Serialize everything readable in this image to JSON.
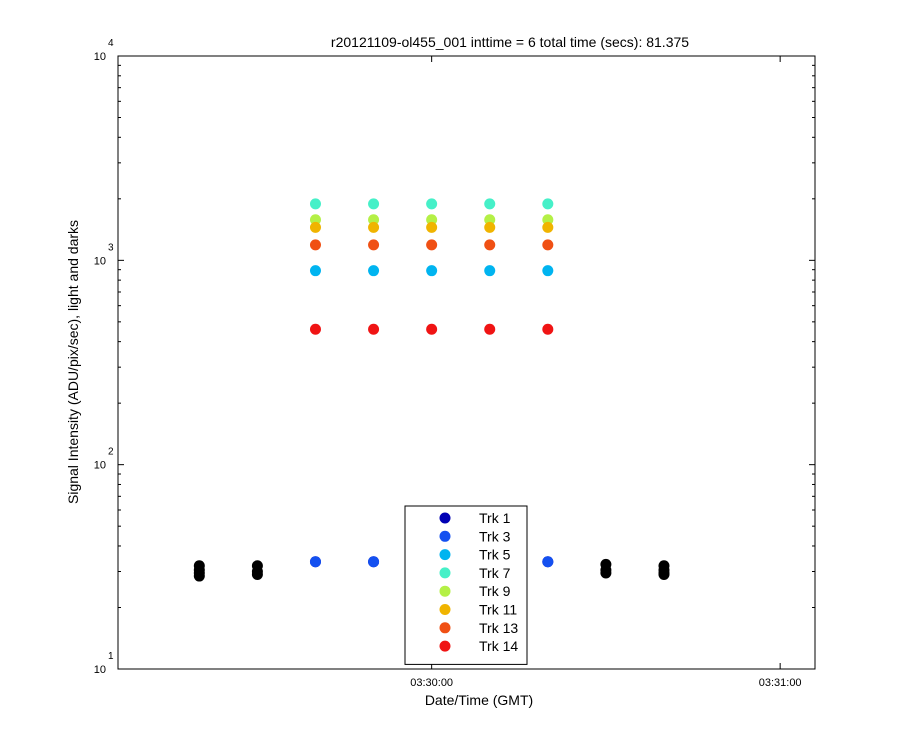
{
  "chart_data": {
    "type": "scatter",
    "title": "r20121109-ol455_001 inttime = 6 total time (secs): 81.375",
    "xlabel": "Date/Time (GMT)",
    "ylabel": "Signal Intensity (ADU/pix/sec), light and darks",
    "yscale": "log",
    "ylim": [
      10,
      10000
    ],
    "xlim": [
      "03:29:06",
      "03:31:06"
    ],
    "x_ticks": [
      "03:30:00",
      "03:31:00"
    ],
    "y_ticks": [
      {
        "value": 10,
        "base": "10",
        "exp": "1"
      },
      {
        "value": 100,
        "base": "10",
        "exp": "2"
      },
      {
        "value": 1000,
        "base": "10",
        "exp": "3"
      },
      {
        "value": 10000,
        "base": "10",
        "exp": "4"
      }
    ],
    "grid": false,
    "legend_position": "bottom-center",
    "series": [
      {
        "name": "Trk 1",
        "color": "#0000b4",
        "x": [
          "03:29:40",
          "03:29:50",
          "03:30:00",
          "03:30:10",
          "03:30:20"
        ],
        "y": [
          33.5,
          33.5,
          33.5,
          33.5,
          33.5
        ]
      },
      {
        "name": "Trk 3",
        "color": "#1450f0",
        "x": [
          "03:29:40",
          "03:29:50",
          "03:30:00",
          "03:30:10",
          "03:30:20"
        ],
        "y": [
          33.5,
          33.5,
          33.5,
          33.5,
          33.5
        ]
      },
      {
        "name": "Trk 5",
        "color": "#00b4f0",
        "x": [
          "03:29:40",
          "03:29:50",
          "03:30:00",
          "03:30:10",
          "03:30:20"
        ],
        "y": [
          890,
          890,
          890,
          890,
          890
        ]
      },
      {
        "name": "Trk 7",
        "color": "#46f0c8",
        "x": [
          "03:29:40",
          "03:29:50",
          "03:30:00",
          "03:30:10",
          "03:30:20"
        ],
        "y": [
          1890,
          1890,
          1890,
          1890,
          1890
        ]
      },
      {
        "name": "Trk 9",
        "color": "#b4f046",
        "x": [
          "03:29:40",
          "03:29:50",
          "03:30:00",
          "03:30:10",
          "03:30:20"
        ],
        "y": [
          1580,
          1580,
          1580,
          1580,
          1580
        ]
      },
      {
        "name": "Trk 11",
        "color": "#f0b400",
        "x": [
          "03:29:40",
          "03:29:50",
          "03:30:00",
          "03:30:10",
          "03:30:20"
        ],
        "y": [
          1450,
          1450,
          1450,
          1450,
          1450
        ]
      },
      {
        "name": "Trk 13",
        "color": "#f05014",
        "x": [
          "03:29:40",
          "03:29:50",
          "03:30:00",
          "03:30:10",
          "03:30:20"
        ],
        "y": [
          1190,
          1190,
          1190,
          1190,
          1190
        ]
      },
      {
        "name": "Trk 14",
        "color": "#f01414",
        "x": [
          "03:29:40",
          "03:29:50",
          "03:30:00",
          "03:30:10",
          "03:30:20"
        ],
        "y": [
          460,
          460,
          460,
          460,
          460
        ]
      },
      {
        "color": "#000000",
        "x": [
          "03:29:20",
          "03:29:20",
          "03:29:20",
          "03:29:20",
          "03:29:30",
          "03:29:30",
          "03:29:30",
          "03:30:30",
          "03:30:30",
          "03:30:30",
          "03:30:40",
          "03:30:40",
          "03:30:40",
          "03:30:40"
        ],
        "y": [
          32,
          30.5,
          29.5,
          28.5,
          32,
          30,
          29,
          32.5,
          30.5,
          29.5,
          32,
          30.5,
          29.5,
          29
        ]
      }
    ]
  }
}
